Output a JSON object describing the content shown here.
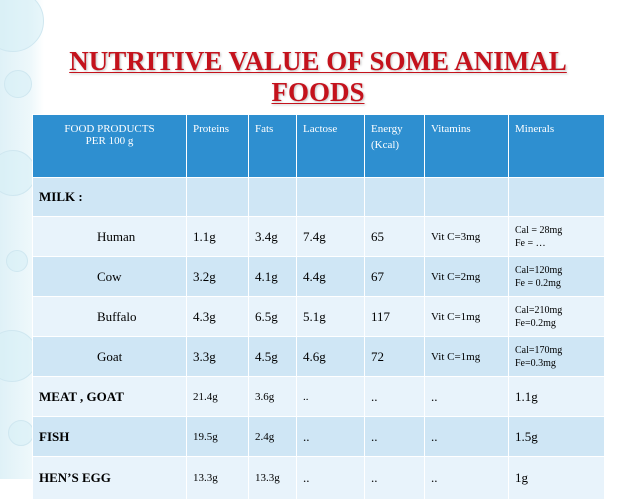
{
  "title_line1": "NUTRITIVE VALUE OF SOME ANIMAL",
  "title_line2": "FOODS",
  "headers": {
    "food_line1": "FOOD PRODUCTS",
    "food_line2": "PER 100 g",
    "proteins": "Proteins",
    "fats": "Fats",
    "lactose": "Lactose",
    "energy_line1": "Energy",
    "energy_line2": "(Kcal)",
    "vitamins": "Vitamins",
    "minerals": "Minerals"
  },
  "milk_label": "MILK :",
  "rows": [
    {
      "food": "Human",
      "proteins": "1.1g",
      "fats": "3.4g",
      "lactose": "7.4g",
      "energy": "65",
      "vitamins": "Vit C=3mg",
      "minerals_1": "Cal = 28mg",
      "minerals_2": "Fe = …"
    },
    {
      "food": "Cow",
      "proteins": "3.2g",
      "fats": "4.1g",
      "lactose": "4.4g",
      "energy": "67",
      "vitamins": "Vit C=2mg",
      "minerals_1": "Cal=120mg",
      "minerals_2": "Fe = 0.2mg"
    },
    {
      "food": "Buffalo",
      "proteins": "4.3g",
      "fats": "6.5g",
      "lactose": "5.1g",
      "energy": "117",
      "vitamins": "Vit C=1mg",
      "minerals_1": "Cal=210mg",
      "minerals_2": "Fe=0.2mg"
    },
    {
      "food": "Goat",
      "proteins": "3.3g",
      "fats": "4.5g",
      "lactose": "4.6g",
      "energy": "72",
      "vitamins": "Vit C=1mg",
      "minerals_1": "Cal=170mg",
      "minerals_2": "Fe=0.3mg"
    },
    {
      "food": "MEAT , GOAT",
      "proteins": "21.4g",
      "fats": "3.6g",
      "lactose": "..",
      "energy": "..",
      "vitamins": "..",
      "minerals_1": "1.1g"
    },
    {
      "food": "FISH",
      "proteins": "19.5g",
      "fats": "2.4g",
      "lactose": "..",
      "energy": "..",
      "vitamins": "..",
      "minerals_1": "1.5g"
    },
    {
      "food": "HEN’S EGG",
      "proteins": "13.3g",
      "fats": "13.3g",
      "lactose": "..",
      "energy": "..",
      "vitamins": "..",
      "minerals_1": "1g"
    }
  ],
  "colors": {
    "title": "#c4121c",
    "header_bg": "#2e8fd0",
    "band_row": "#cfe6f5",
    "plain_row": "#e8f3fb"
  }
}
